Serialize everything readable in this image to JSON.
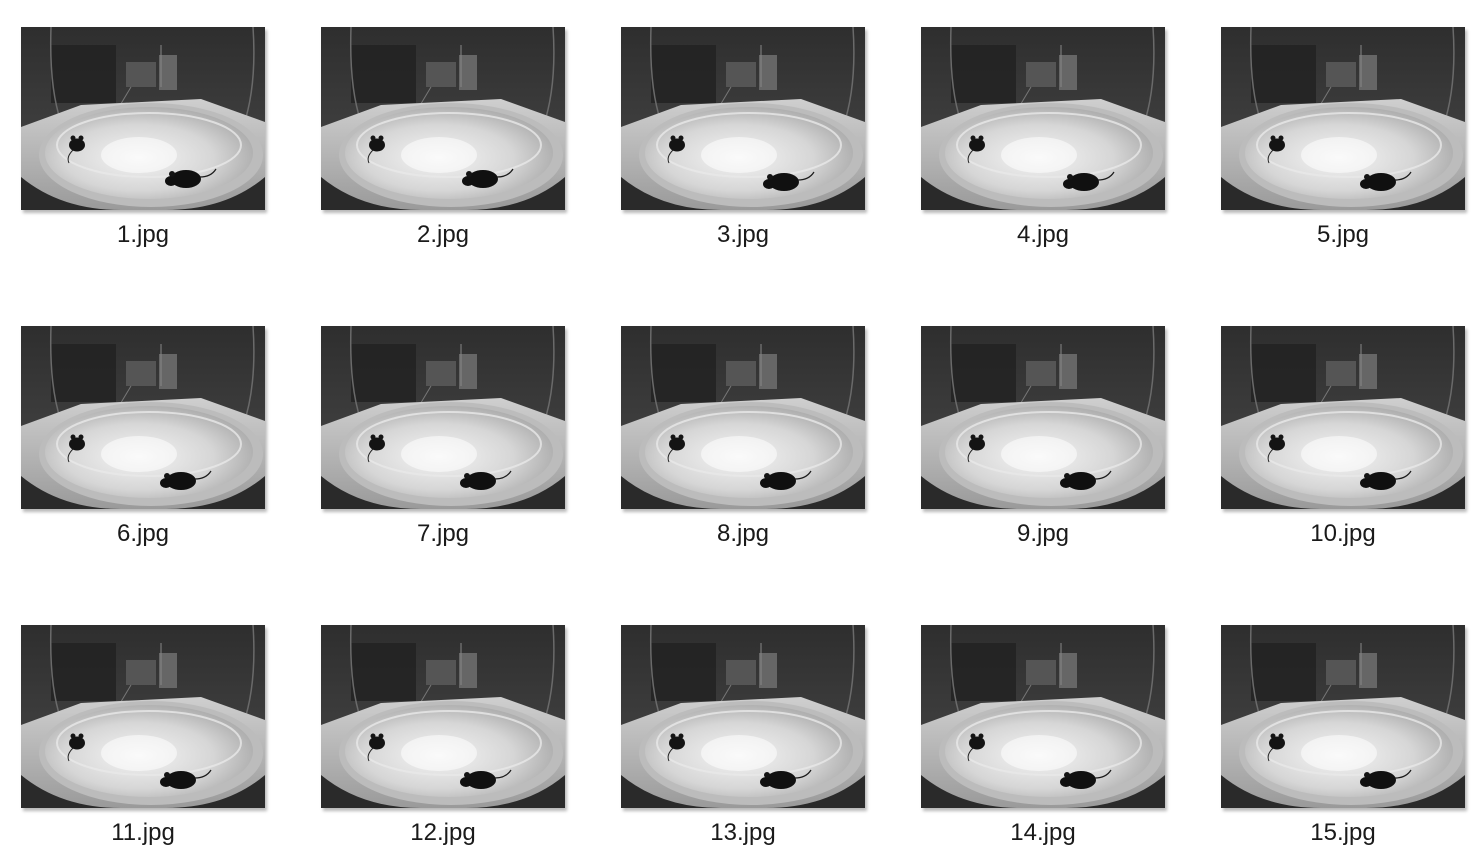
{
  "files": [
    {
      "name": "1.jpg",
      "thumbnail-icon": "mouse-arena-photo"
    },
    {
      "name": "2.jpg",
      "thumbnail-icon": "mouse-arena-photo"
    },
    {
      "name": "3.jpg",
      "thumbnail-icon": "mouse-arena-photo"
    },
    {
      "name": "4.jpg",
      "thumbnail-icon": "mouse-arena-photo"
    },
    {
      "name": "5.jpg",
      "thumbnail-icon": "mouse-arena-photo"
    },
    {
      "name": "6.jpg",
      "thumbnail-icon": "mouse-arena-photo"
    },
    {
      "name": "7.jpg",
      "thumbnail-icon": "mouse-arena-photo"
    },
    {
      "name": "8.jpg",
      "thumbnail-icon": "mouse-arena-photo"
    },
    {
      "name": "9.jpg",
      "thumbnail-icon": "mouse-arena-photo"
    },
    {
      "name": "10.jpg",
      "thumbnail-icon": "mouse-arena-photo"
    },
    {
      "name": "11.jpg",
      "thumbnail-icon": "mouse-arena-photo"
    },
    {
      "name": "12.jpg",
      "thumbnail-icon": "mouse-arena-photo"
    },
    {
      "name": "13.jpg",
      "thumbnail-icon": "mouse-arena-photo"
    },
    {
      "name": "14.jpg",
      "thumbnail-icon": "mouse-arena-photo"
    },
    {
      "name": "15.jpg",
      "thumbnail-icon": "mouse-arena-photo"
    }
  ],
  "colors": {
    "label_text": "#1a1a1a",
    "background": "#ffffff"
  }
}
